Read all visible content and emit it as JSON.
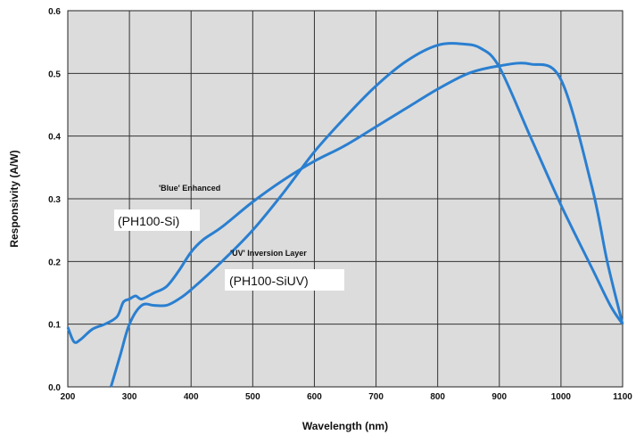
{
  "chart_data": {
    "type": "line",
    "title": "",
    "xlabel": "Wavelength (nm)",
    "ylabel": "Responsivity (A/W)",
    "xlim": [
      200,
      1100
    ],
    "ylim": [
      0,
      0.6
    ],
    "x_ticks": [
      "200",
      "300",
      "400",
      "500",
      "600",
      "700",
      "800",
      "900",
      "1000",
      "1100"
    ],
    "y_ticks": [
      "0.0",
      "0.1",
      "0.2",
      "0.3",
      "0.4",
      "0.5",
      "0.6"
    ],
    "grid": true,
    "plot_background": "#dcdcdc",
    "line_color": "#2a7fd0",
    "annotations": {
      "blue_label": "'Blue' Enhanced",
      "blue_model": "(PH100-Si)",
      "uv_label": "'UV' Inversion Layer",
      "uv_model": "(PH100-SiUV)"
    },
    "series": [
      {
        "x": [
          200,
          210,
          220,
          240,
          260,
          280,
          290,
          300,
          310,
          320,
          340,
          360,
          380,
          400,
          420,
          450,
          500,
          550,
          600,
          650,
          700,
          750,
          800,
          850,
          900,
          950,
          1000,
          1050,
          1075,
          1100
        ],
        "y": [
          0.095,
          0.072,
          0.075,
          0.092,
          0.1,
          0.112,
          0.135,
          0.14,
          0.145,
          0.14,
          0.15,
          0.16,
          0.185,
          0.215,
          0.235,
          0.255,
          0.295,
          0.33,
          0.36,
          0.385,
          0.415,
          0.445,
          0.475,
          0.5,
          0.512,
          0.515,
          0.49,
          0.32,
          0.2,
          0.1
        ]
      },
      {
        "x": [
          270,
          285,
          300,
          320,
          340,
          360,
          380,
          400,
          450,
          500,
          550,
          600,
          650,
          700,
          750,
          800,
          840,
          870,
          900,
          950,
          1000,
          1050,
          1080,
          1100
        ],
        "y": [
          0.0,
          0.05,
          0.1,
          0.13,
          0.13,
          0.13,
          0.14,
          0.155,
          0.2,
          0.25,
          0.31,
          0.375,
          0.43,
          0.48,
          0.52,
          0.545,
          0.547,
          0.54,
          0.51,
          0.4,
          0.29,
          0.19,
          0.13,
          0.1
        ]
      }
    ]
  }
}
